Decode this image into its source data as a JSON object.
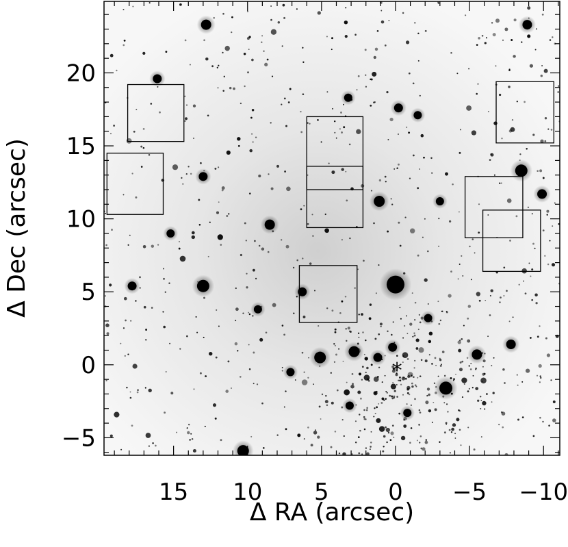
{
  "chart_data": {
    "type": "scatter",
    "title": "",
    "xlabel": "Δ RA (arcsec)",
    "ylabel": "Δ Dec (arcsec)",
    "xlim": [
      19.7,
      -11.1
    ],
    "ylim": [
      -6.2,
      24.9
    ],
    "x_ticks": [
      {
        "value": 15,
        "label": "15"
      },
      {
        "value": 10,
        "label": "10"
      },
      {
        "value": 5,
        "label": "5"
      },
      {
        "value": 0,
        "label": "0"
      },
      {
        "value": -5,
        "label": "−5"
      },
      {
        "value": -10,
        "label": "−10"
      }
    ],
    "y_ticks": [
      {
        "value": 20,
        "label": "20"
      },
      {
        "value": 15,
        "label": "15"
      },
      {
        "value": 10,
        "label": "10"
      },
      {
        "value": 5,
        "label": "5"
      },
      {
        "value": 0,
        "label": "0"
      },
      {
        "value": -5,
        "label": "−5"
      }
    ],
    "image": "inverted greyscale star field",
    "center_marker": {
      "x": -0.1,
      "y": -0.2,
      "label": "*"
    },
    "boxes": [
      {
        "x": [
          19.5,
          15.7
        ],
        "y": [
          14.5,
          10.3
        ]
      },
      {
        "x": [
          18.1,
          14.3
        ],
        "y": [
          19.2,
          15.3
        ]
      },
      {
        "x": [
          6.0,
          2.2
        ],
        "y": [
          17.0,
          12.0
        ]
      },
      {
        "x": [
          6.0,
          2.2
        ],
        "y": [
          13.6,
          9.4
        ]
      },
      {
        "x": [
          6.5,
          2.6
        ],
        "y": [
          6.8,
          2.9
        ]
      },
      {
        "x": [
          -4.7,
          -8.6
        ],
        "y": [
          12.9,
          8.7
        ]
      },
      {
        "x": [
          -5.9,
          -9.8
        ],
        "y": [
          10.6,
          6.4
        ]
      },
      {
        "x": [
          -6.8,
          -10.7
        ],
        "y": [
          19.4,
          15.2
        ]
      }
    ],
    "bright_stars": [
      {
        "x": 0.0,
        "y": 5.5,
        "mag": 1.0
      },
      {
        "x": -3.4,
        "y": -1.6,
        "mag": 0.65
      },
      {
        "x": 13.0,
        "y": 5.4,
        "mag": 0.6
      },
      {
        "x": -8.5,
        "y": 13.3,
        "mag": 0.6
      },
      {
        "x": 5.1,
        "y": 0.5,
        "mag": 0.55
      },
      {
        "x": 10.3,
        "y": -5.9,
        "mag": 0.55
      },
      {
        "x": 1.1,
        "y": 11.2,
        "mag": 0.5
      },
      {
        "x": 2.8,
        "y": 0.9,
        "mag": 0.5
      },
      {
        "x": 8.5,
        "y": 9.6,
        "mag": 0.45
      },
      {
        "x": 12.8,
        "y": 23.3,
        "mag": 0.45
      },
      {
        "x": -5.5,
        "y": 0.7,
        "mag": 0.45
      },
      {
        "x": -7.8,
        "y": 1.4,
        "mag": 0.4
      },
      {
        "x": -9.9,
        "y": 11.7,
        "mag": 0.4
      },
      {
        "x": -8.9,
        "y": 23.3,
        "mag": 0.4
      },
      {
        "x": 16.1,
        "y": 19.6,
        "mag": 0.35
      },
      {
        "x": 13.0,
        "y": 12.9,
        "mag": 0.35
      },
      {
        "x": -0.2,
        "y": 17.6,
        "mag": 0.35
      },
      {
        "x": 1.2,
        "y": 0.5,
        "mag": 0.35
      },
      {
        "x": 0.2,
        "y": 1.2,
        "mag": 0.35
      },
      {
        "x": 6.3,
        "y": 5.0,
        "mag": 0.35
      },
      {
        "x": 17.8,
        "y": 5.4,
        "mag": 0.35
      },
      {
        "x": -2.2,
        "y": 3.2,
        "mag": 0.3
      },
      {
        "x": -1.5,
        "y": 17.1,
        "mag": 0.3
      },
      {
        "x": 3.2,
        "y": 18.3,
        "mag": 0.3
      },
      {
        "x": 9.3,
        "y": 3.8,
        "mag": 0.3
      },
      {
        "x": 15.2,
        "y": 9.0,
        "mag": 0.3
      },
      {
        "x": -3.0,
        "y": 11.2,
        "mag": 0.3
      },
      {
        "x": -0.8,
        "y": -3.3,
        "mag": 0.3
      },
      {
        "x": 3.1,
        "y": -2.8,
        "mag": 0.3
      },
      {
        "x": 7.1,
        "y": -0.5,
        "mag": 0.3
      }
    ]
  }
}
